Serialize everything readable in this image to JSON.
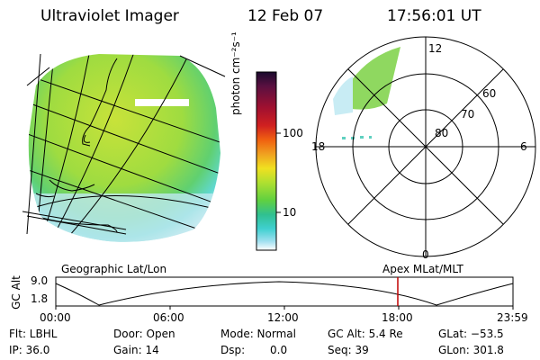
{
  "header": {
    "title": "Ultraviolet Imager",
    "date": "12 Feb 07",
    "time": "17:56:01 UT"
  },
  "colorbar": {
    "unit_label": "photon cm⁻²s⁻¹",
    "ticks": [
      "100",
      "10"
    ],
    "colors": [
      "#1a0a2e",
      "#5a1040",
      "#a01030",
      "#d02020",
      "#f06010",
      "#f0a020",
      "#f0e020",
      "#b0e030",
      "#60d040",
      "#30c090",
      "#40d0d0",
      "#a0e0f0",
      "#ffffff"
    ]
  },
  "polar": {
    "labels": {
      "top": "12",
      "bottom": "0",
      "left": "18",
      "right": "6"
    },
    "rings": [
      "60",
      "70",
      "80"
    ]
  },
  "timeline": {
    "left_title": "Geographic Lat/Lon",
    "right_title": "Apex  MLat/MLT",
    "ylabel": "GC Alt",
    "ymax": "9.0",
    "ymin": "1.8",
    "xticks": [
      "00:00",
      "06:00",
      "12:00",
      "18:00",
      "23:59"
    ],
    "marker_time": "17:56"
  },
  "footer": {
    "flt": "Flt: LBHL",
    "ip": "IP: 36.0",
    "door": "Door: Open",
    "gain": "Gain: 14",
    "mode": "Mode: Normal",
    "dsp_label": "Dsp:",
    "dsp_value": "0.0",
    "gcalt": "GC Alt: 5.4 Re",
    "seq": "Seq: 39",
    "glat": "GLat: −53.5",
    "glon": "GLon: 301.8"
  }
}
